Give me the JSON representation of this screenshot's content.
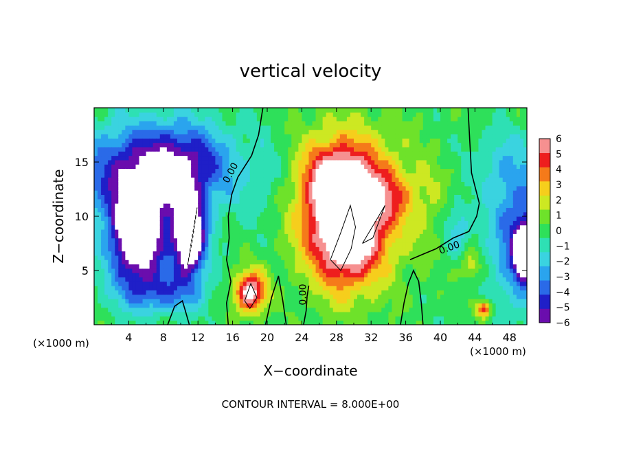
{
  "chart_data": {
    "type": "heatmap",
    "title": "vertical velocity",
    "xlabel": "X−coordinate",
    "ylabel": "Z−coordinate",
    "x_unit_label": "(×1000 m)",
    "y_unit_label": "(×1000 m)",
    "footer": "CONTOUR INTERVAL = 8.000E+00",
    "xlim": [
      0,
      50
    ],
    "ylim": [
      0,
      20
    ],
    "x_ticks": [
      {
        "value": 4,
        "label": "4"
      },
      {
        "value": 8,
        "label": "8"
      },
      {
        "value": 12,
        "label": "12"
      },
      {
        "value": 16,
        "label": "16"
      },
      {
        "value": 20,
        "label": "20"
      },
      {
        "value": 24,
        "label": "24"
      },
      {
        "value": 28,
        "label": "28"
      },
      {
        "value": 32,
        "label": "32"
      },
      {
        "value": 36,
        "label": "36"
      },
      {
        "value": 40,
        "label": "40"
      },
      {
        "value": 44,
        "label": "44"
      },
      {
        "value": 48,
        "label": "48"
      }
    ],
    "y_ticks": [
      {
        "value": 5,
        "label": "5"
      },
      {
        "value": 10,
        "label": "10"
      },
      {
        "value": 15,
        "label": "15"
      }
    ],
    "colorbar": {
      "range": [
        -6,
        6
      ],
      "labels": [
        "6",
        "5",
        "4",
        "3",
        "2",
        "1",
        "0",
        "−1",
        "−2",
        "−3",
        "−4",
        "−5",
        "−6"
      ],
      "colors": [
        "#6a0dad",
        "#1f1fc8",
        "#2a6ae8",
        "#2aa4ee",
        "#3ad3e0",
        "#2ee0b4",
        "#2ee05a",
        "#6ee22a",
        "#cde822",
        "#f6ce1c",
        "#f57a1a",
        "#ee1e1e",
        "#f69090"
      ]
    },
    "contour_labels": [
      {
        "text": "0.00",
        "x": 15.5,
        "y": 13.0
      },
      {
        "text": "0.00",
        "x": 40.0,
        "y": 6.5
      },
      {
        "text": "0.00",
        "x": 24.5,
        "y": 1.8
      }
    ],
    "features": [
      {
        "kind": "updraft",
        "center_x": 29,
        "center_z": 8,
        "note": "saturated (> 6) core"
      },
      {
        "kind": "downdraft",
        "center_x": 5,
        "center_z": 8,
        "note": "saturated (< −6) core"
      },
      {
        "kind": "downdraft",
        "center_x": 11,
        "center_z": 8,
        "note": "saturated (< −6) core"
      },
      {
        "kind": "downdraft",
        "center_x": 49,
        "center_z": 6.5,
        "note": "saturated (< −6) core"
      },
      {
        "kind": "updraft",
        "center_x": 18,
        "center_z": 3,
        "note": "small cell"
      },
      {
        "kind": "updraft",
        "center_x": 45,
        "center_z": 1.5,
        "note": "small cell"
      }
    ]
  }
}
